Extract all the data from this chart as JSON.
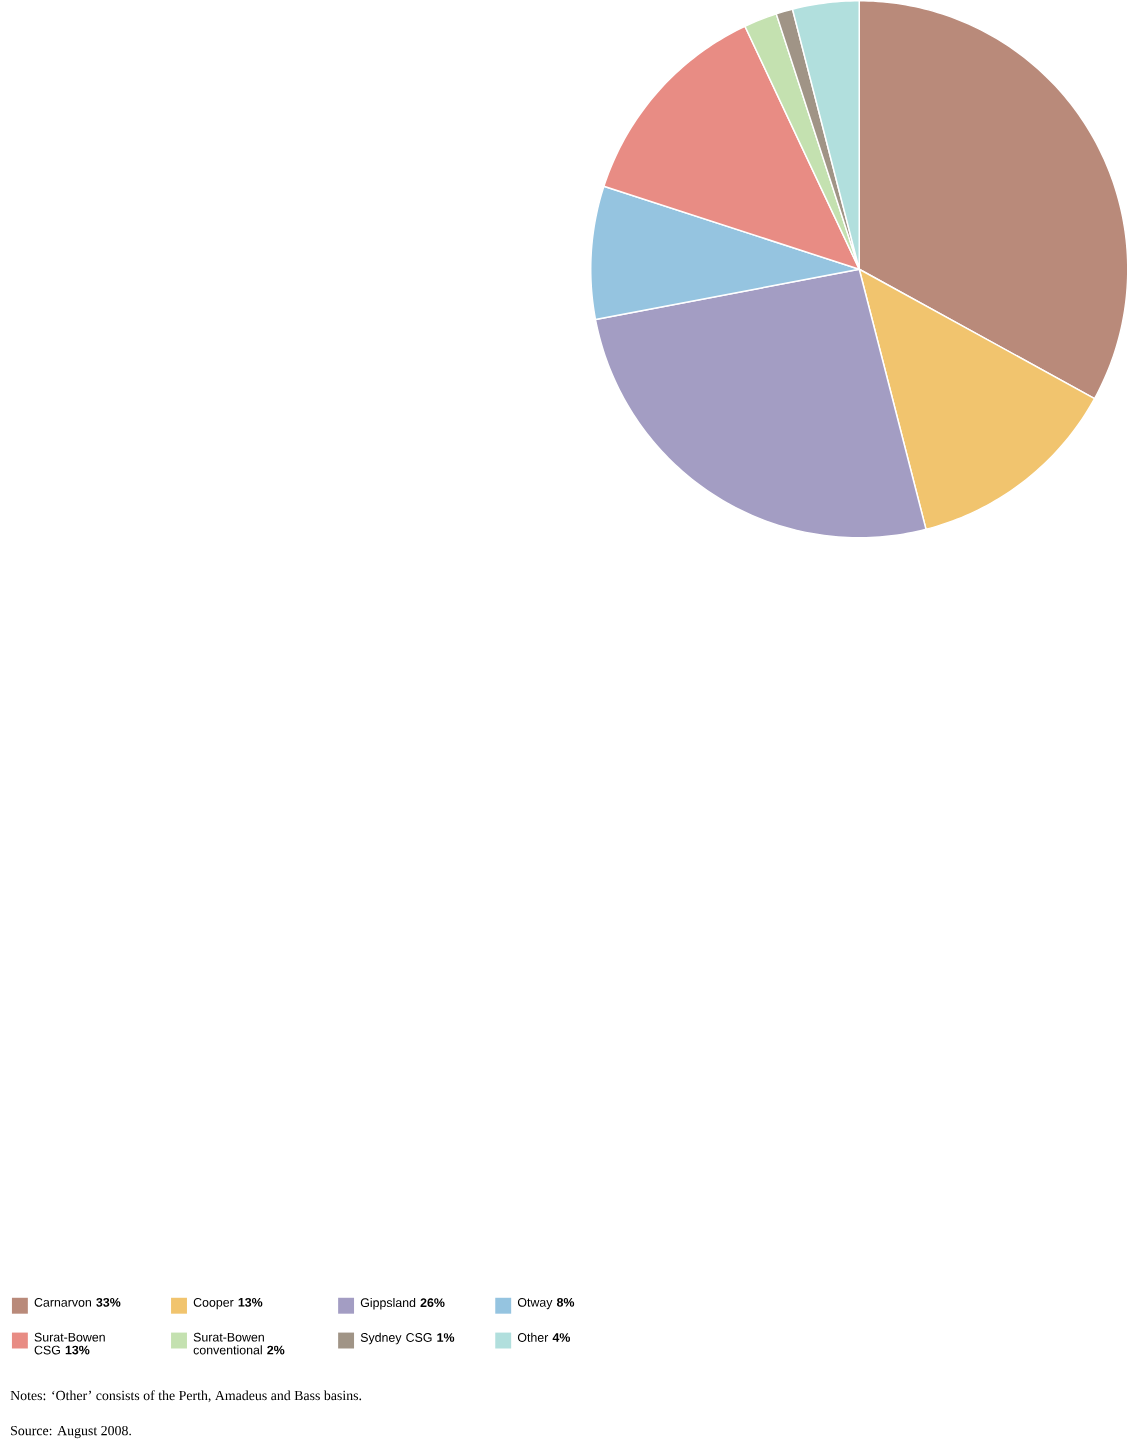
{
  "chart_data": {
    "type": "pie",
    "categories": [
      "Carnarvon",
      "Cooper",
      "Gippsland",
      "Otway",
      "Surat-Bowen CSG",
      "Surat-Bowen conventional",
      "Sydney CSG",
      "Other"
    ],
    "values": [
      33,
      13,
      26,
      8,
      13,
      2,
      1,
      4
    ],
    "value_labels": [
      "33%",
      "13%",
      "26%",
      "8%",
      "13%",
      "2%",
      "1%",
      "4%"
    ],
    "colors": [
      "#b98a7a",
      "#f1c46e",
      "#a39dc3",
      "#95c4e0",
      "#e88c84",
      "#c4e1b0",
      "#a09486",
      "#b1dfdd"
    ],
    "legend": "bottom",
    "annotations": [
      "Notes: ‘Other’ consists of the Perth, Amadeus and Bass basins.",
      "Source: August 2008."
    ]
  }
}
